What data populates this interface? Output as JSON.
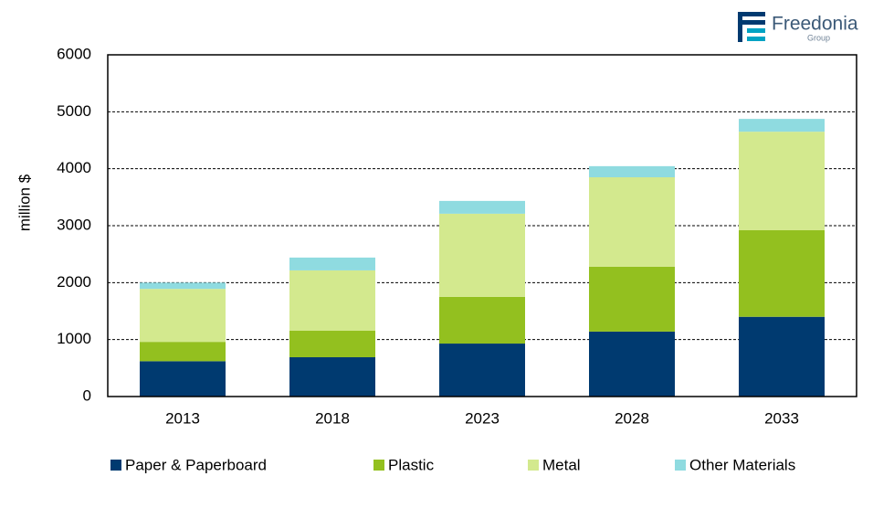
{
  "chart_data": {
    "type": "stacked_bar",
    "y_label": "million $",
    "categories": [
      "2013",
      "2018",
      "2023",
      "2028",
      "2033"
    ],
    "series": [
      {
        "name": "Paper & Paperboard",
        "color": "#003a70",
        "values": [
          620,
          690,
          930,
          1140,
          1400
        ]
      },
      {
        "name": "Plastic",
        "color": "#93c01f",
        "values": [
          340,
          465,
          820,
          1140,
          1520
        ]
      },
      {
        "name": "Metal",
        "color": "#d3e98e",
        "values": [
          930,
          1060,
          1460,
          1570,
          1730
        ]
      },
      {
        "name": "Other Materials",
        "color": "#8fdbe0",
        "values": [
          110,
          225,
          225,
          195,
          225
        ]
      }
    ],
    "ylim": [
      0,
      6000
    ],
    "yticks": [
      0,
      1000,
      2000,
      3000,
      4000,
      5000,
      6000
    ],
    "grid": true,
    "legend": "bottom"
  },
  "logo": {
    "name": "Freedonia",
    "subtitle": "Group"
  }
}
